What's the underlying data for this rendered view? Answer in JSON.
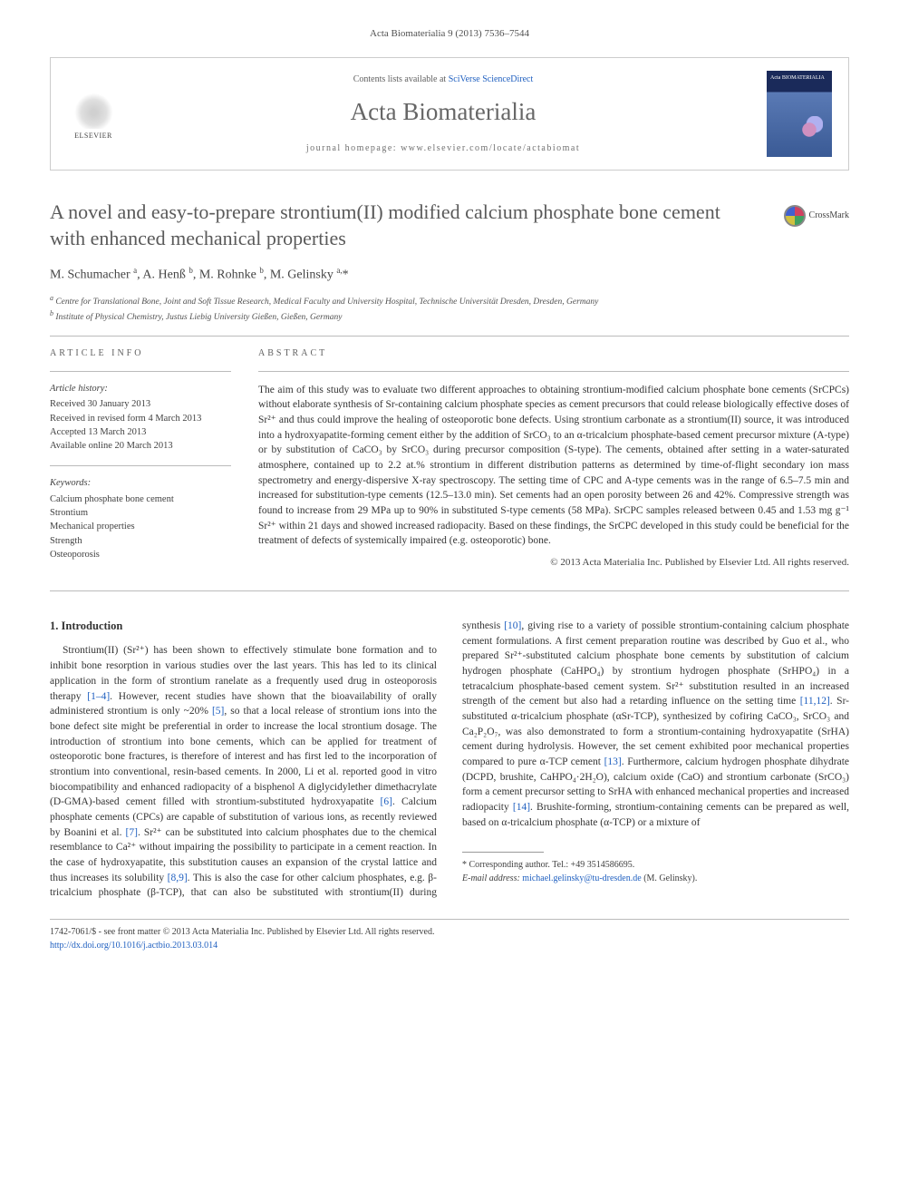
{
  "citation": "Acta Biomaterialia 9 (2013) 7536–7544",
  "header": {
    "contents_prefix": "Contents lists available at ",
    "contents_link": "SciVerse ScienceDirect",
    "journal": "Acta Biomaterialia",
    "homepage_prefix": "journal homepage: ",
    "homepage": "www.elsevier.com/locate/actabiomat",
    "publisher": "ELSEVIER",
    "cover_label": "Acta BIOMATERIALIA"
  },
  "crossmark": "CrossMark",
  "title": "A novel and easy-to-prepare strontium(II) modified calcium phosphate bone cement with enhanced mechanical properties",
  "authors_html": "M. Schumacher <sup>a</sup>, A. Henß <sup>b</sup>, M. Rohnke <sup>b</sup>, M. Gelinsky <sup>a,</sup>*",
  "affiliations": {
    "a": "Centre for Translational Bone, Joint and Soft Tissue Research, Medical Faculty and University Hospital, Technische Universität Dresden, Dresden, Germany",
    "b": "Institute of Physical Chemistry, Justus Liebig University Gießen, Gießen, Germany"
  },
  "info": {
    "heading": "ARTICLE INFO",
    "history_label": "Article history:",
    "history": [
      "Received 30 January 2013",
      "Received in revised form 4 March 2013",
      "Accepted 13 March 2013",
      "Available online 20 March 2013"
    ],
    "keywords_label": "Keywords:",
    "keywords": [
      "Calcium phosphate bone cement",
      "Strontium",
      "Mechanical properties",
      "Strength",
      "Osteoporosis"
    ]
  },
  "abstract": {
    "heading": "ABSTRACT",
    "text": "The aim of this study was to evaluate two different approaches to obtaining strontium-modified calcium phosphate bone cements (SrCPCs) without elaborate synthesis of Sr-containing calcium phosphate species as cement precursors that could release biologically effective doses of Sr²⁺ and thus could improve the healing of osteoporotic bone defects. Using strontium carbonate as a strontium(II) source, it was introduced into a hydroxyapatite-forming cement either by the addition of SrCO₃ to an α-tricalcium phosphate-based cement precursor mixture (A-type) or by substitution of CaCO₃ by SrCO₃ during precursor composition (S-type). The cements, obtained after setting in a water-saturated atmosphere, contained up to 2.2 at.% strontium in different distribution patterns as determined by time-of-flight secondary ion mass spectrometry and energy-dispersive X-ray spectroscopy. The setting time of CPC and A-type cements was in the range of 6.5–7.5 min and increased for substitution-type cements (12.5–13.0 min). Set cements had an open porosity between 26 and 42%. Compressive strength was found to increase from 29 MPa up to 90% in substituted S-type cements (58 MPa). SrCPC samples released between 0.45 and 1.53 mg g⁻¹ Sr²⁺ within 21 days and showed increased radiopacity. Based on these findings, the SrCPC developed in this study could be beneficial for the treatment of defects of systemically impaired (e.g. osteoporotic) bone.",
    "copyright": "© 2013 Acta Materialia Inc. Published by Elsevier Ltd. All rights reserved."
  },
  "section1": {
    "heading": "1. Introduction",
    "para": "Strontium(II) (Sr²⁺) has been shown to effectively stimulate bone formation and to inhibit bone resorption in various studies over the last years. This has led to its clinical application in the form of strontium ranelate as a frequently used drug in osteoporosis therapy [1–4]. However, recent studies have shown that the bioavailability of orally administered strontium is only ~20% [5], so that a local release of strontium ions into the bone defect site might be preferential in order to increase the local strontium dosage. The introduction of strontium into bone cements, which can be applied for treatment of osteoporotic bone fractures, is therefore of interest and has first led to the incorporation of strontium into conventional, resin-based cements. In 2000, Li et al. reported good in vitro biocompatibility and enhanced radiopacity of a bisphenol A diglycidylether dimethacrylate (D-GMA)-based cement filled with strontium-substituted hydroxyapatite [6]. Calcium phosphate cements (CPCs) are capable of substitution of various ions, as recently reviewed by Boanini et al. [7]. Sr²⁺ can be substituted into calcium phosphates due to the chemical resemblance to Ca²⁺ without impairing the possibility to participate in a cement reaction. In the case of hydroxyapatite, this substitution causes an expansion of the crystal lattice and thus increases its solubility [8,9]. This is also the case for other calcium phosphates, e.g. β-tricalcium phosphate (β-TCP), that can also be substituted with strontium(II) during synthesis [10], giving rise to a variety of possible strontium-containing calcium phosphate cement formulations. A first cement preparation routine was described by Guo et al., who prepared Sr²⁺-substituted calcium phosphate bone cements by substitution of calcium hydrogen phosphate (CaHPO₄) by strontium hydrogen phosphate (SrHPO₄) in a tetracalcium phosphate-based cement system. Sr²⁺ substitution resulted in an increased strength of the cement but also had a retarding influence on the setting time [11,12]. Sr-substituted α-tricalcium phosphate (αSr-TCP), synthesized by cofiring CaCO₃, SrCO₃ and Ca₂P₂O₇, was also demonstrated to form a strontium-containing hydroxyapatite (SrHA) cement during hydrolysis. However, the set cement exhibited poor mechanical properties compared to pure α-TCP cement [13]. Furthermore, calcium hydrogen phosphate dihydrate (DCPD, brushite, CaHPO₄·2H₂O), calcium oxide (CaO) and strontium carbonate (SrCO₃) form a cement precursor setting to SrHA with enhanced mechanical properties and increased radiopacity [14]. Brushite-forming, strontium-containing cements can be prepared as well, based on α-tricalcium phosphate (α-TCP) or a mixture of"
  },
  "corresponding": {
    "label": "* Corresponding author. Tel.: +49 3514586695.",
    "email_label": "E-mail address: ",
    "email": "michael.gelinsky@tu-dresden.de",
    "email_suffix": " (M. Gelinsky)."
  },
  "footer": {
    "issn": "1742-7061/$ - see front matter © 2013 Acta Materialia Inc. Published by Elsevier Ltd. All rights reserved.",
    "doi": "http://dx.doi.org/10.1016/j.actbio.2013.03.014"
  },
  "colors": {
    "link": "#2060c0",
    "text": "#333333",
    "heading_gray": "#5a5a5a",
    "rule": "#bbbbbb"
  }
}
